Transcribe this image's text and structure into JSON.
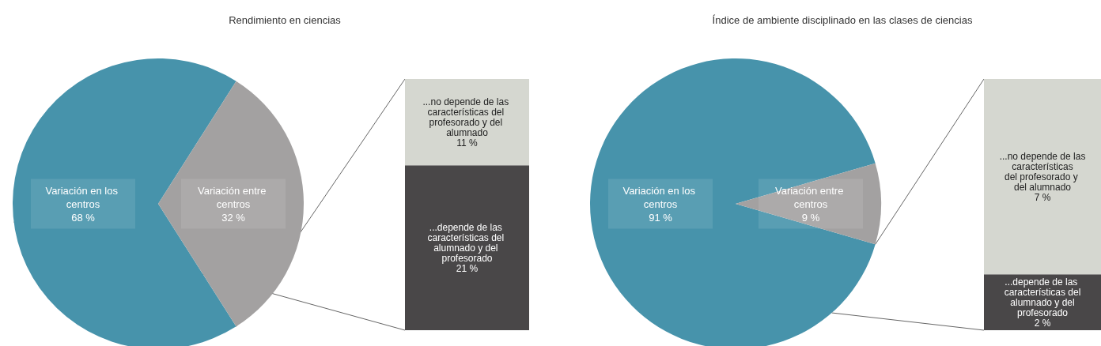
{
  "chart_data": [
    {
      "type": "pie",
      "title": "Rendimiento en ciencias",
      "categories": [
        "Variación en los centros",
        "Variación entre centros"
      ],
      "values": [
        68,
        32
      ],
      "value_labels": [
        "68 %",
        "32 %"
      ],
      "colors": [
        "#4793ab",
        "#a3a1a1"
      ]
    },
    {
      "type": "bar",
      "stacked": true,
      "categories": [
        null
      ],
      "series": [
        {
          "name": "...depende de las características del alumnado y del profesorado",
          "color": "#494748",
          "values": [
            21
          ],
          "value_labels": [
            "21 %"
          ]
        },
        {
          "name": "...no depende de las características del profesorado y del alumnado",
          "color": "#d5d7d0",
          "values": [
            11
          ],
          "value_labels": [
            "11 %"
          ]
        }
      ]
    },
    {
      "type": "pie",
      "title": "Índice de ambiente disciplinado en las clases de ciencias",
      "categories": [
        "Variación en los centros",
        "Variación entre centros"
      ],
      "values": [
        91,
        9
      ],
      "value_labels": [
        "91 %",
        "9 %"
      ],
      "colors": [
        "#4793ab",
        "#a3a1a1"
      ]
    },
    {
      "type": "bar",
      "stacked": true,
      "categories": [
        null
      ],
      "series": [
        {
          "name": "...depende de las características del alumnado y del profesorado",
          "color": "#494748",
          "values": [
            2
          ],
          "value_labels": [
            "2 %"
          ]
        },
        {
          "name": "...no depende de las características del profesorado y del alumnado",
          "color": "#d5d7d0",
          "values": [
            7
          ],
          "value_labels": [
            "7 %"
          ]
        }
      ]
    }
  ]
}
